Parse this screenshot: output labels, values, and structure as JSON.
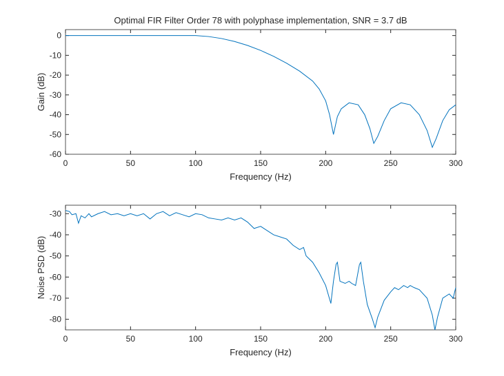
{
  "chart_data": [
    {
      "type": "line",
      "title": "Optimal FIR Filter Order 78 with polyphase implementation, SNR = 3.7 dB",
      "xlabel": "Frequency (Hz)",
      "ylabel": "Gain (dB)",
      "color": "#0072bd",
      "xlim": [
        0,
        300
      ],
      "ylim": [
        -60,
        3
      ],
      "xticks": [
        0,
        50,
        100,
        150,
        200,
        250,
        300
      ],
      "yticks": [
        -60,
        -50,
        -40,
        -30,
        -20,
        -10,
        0
      ],
      "x": [
        0,
        20,
        40,
        60,
        80,
        100,
        110,
        120,
        130,
        140,
        150,
        160,
        170,
        180,
        190,
        195,
        200,
        203,
        206,
        209,
        212,
        218,
        225,
        230,
        234,
        237,
        240,
        245,
        250,
        258,
        265,
        272,
        278,
        282,
        285,
        290,
        295,
        300
      ],
      "values": [
        0,
        0,
        0,
        0,
        0,
        0,
        -0.5,
        -1.5,
        -3,
        -5,
        -7.5,
        -10.5,
        -14,
        -18,
        -23,
        -27,
        -33,
        -40,
        -50,
        -41,
        -37,
        -34,
        -35,
        -40,
        -47,
        -54.5,
        -51,
        -43,
        -37,
        -34,
        -35,
        -40,
        -48,
        -56.5,
        -52,
        -43,
        -37.5,
        -35
      ]
    },
    {
      "type": "line",
      "xlabel": "Frequency (Hz)",
      "ylabel": "Noise PSD (dB)",
      "color": "#0072bd",
      "xlim": [
        0,
        300
      ],
      "ylim": [
        -85,
        -26
      ],
      "xticks": [
        0,
        50,
        100,
        150,
        200,
        250,
        300
      ],
      "yticks": [
        -80,
        -70,
        -60,
        -50,
        -40,
        -30
      ],
      "x": [
        0,
        3,
        5,
        8,
        10,
        12,
        15,
        18,
        20,
        25,
        30,
        35,
        40,
        45,
        50,
        55,
        60,
        65,
        70,
        75,
        80,
        85,
        90,
        95,
        100,
        105,
        110,
        115,
        120,
        125,
        130,
        135,
        140,
        145,
        150,
        155,
        160,
        165,
        170,
        175,
        180,
        183,
        185,
        190,
        195,
        200,
        204,
        206,
        208,
        209,
        211,
        215,
        218,
        220,
        223,
        226,
        227,
        229,
        232,
        236,
        238,
        240,
        245,
        250,
        253,
        256,
        260,
        263,
        265,
        268,
        272,
        278,
        282,
        284,
        286,
        290,
        295,
        298,
        300
      ],
      "values": [
        -28.5,
        -29,
        -30.5,
        -30,
        -34.5,
        -31,
        -32,
        -30,
        -31.5,
        -30,
        -29,
        -30.5,
        -30,
        -31,
        -30,
        -31,
        -30,
        -32.5,
        -30,
        -29,
        -31,
        -29.5,
        -30.5,
        -31.5,
        -30,
        -30.5,
        -32,
        -32.5,
        -33,
        -32,
        -33,
        -32,
        -34,
        -37,
        -36,
        -38,
        -40,
        -41,
        -42,
        -45,
        -47,
        -46,
        -50,
        -53,
        -58,
        -64,
        -72.5,
        -62,
        -54,
        -53,
        -62,
        -63,
        -62,
        -63,
        -64,
        -54,
        -53,
        -62,
        -73,
        -80,
        -84,
        -79,
        -71,
        -67,
        -65,
        -66,
        -64,
        -65,
        -64,
        -65,
        -66,
        -70,
        -78,
        -85,
        -79,
        -70,
        -68,
        -70,
        -65
      ]
    }
  ]
}
